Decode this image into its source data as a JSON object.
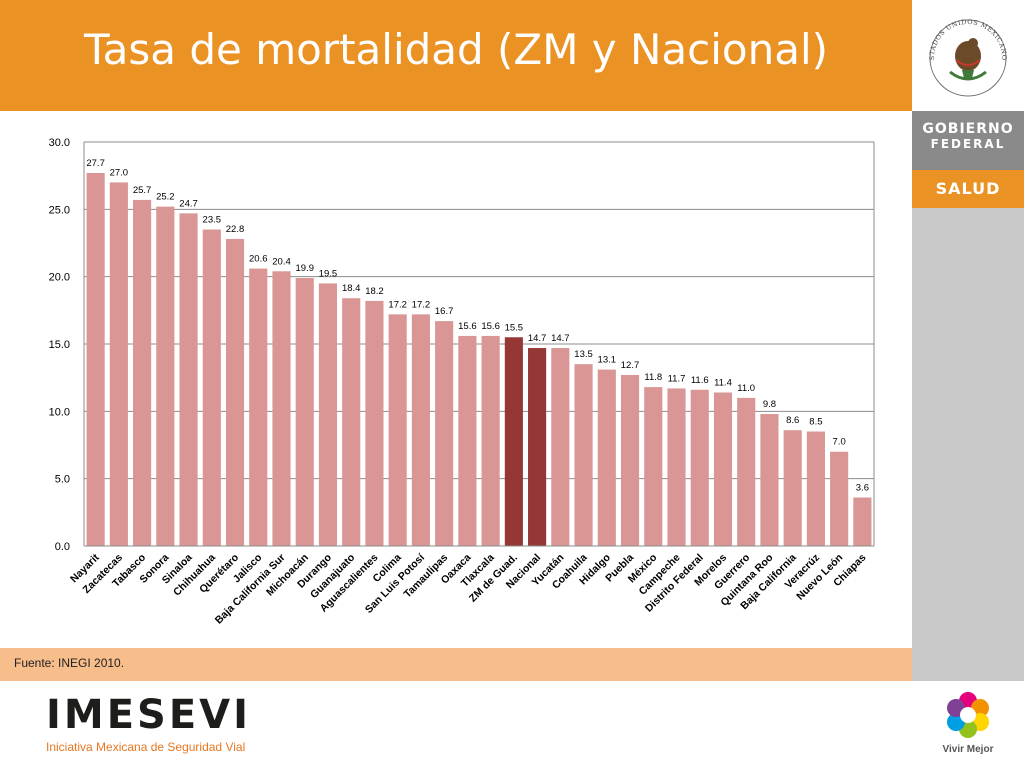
{
  "slide": {
    "title": "Tasa de mortalidad (ZM y Nacional)",
    "source": "Fuente: INEGI 2010."
  },
  "branding": {
    "gobierno_line1": "Gobierno",
    "gobierno_line2": "FEDERAL",
    "salud": "SALUD",
    "imesevi": "IMESEVI",
    "imesevi_tagline": "Iniciativa Mexicana de Seguridad Vial",
    "vivir_mejor": "Vivir Mejor",
    "seal_text": "ESTADOS UNIDOS MEXICANOS"
  },
  "colors": {
    "accent_orange": "#eb9225",
    "bar_default": "#d99694",
    "bar_highlight": "#953735",
    "source_band": "#f7bd8a"
  },
  "chart_data": {
    "type": "bar",
    "title": "",
    "xlabel": "",
    "ylabel": "",
    "ylim": [
      0,
      30
    ],
    "yticks": [
      "0.0",
      "5.0",
      "10.0",
      "15.0",
      "20.0",
      "25.0",
      "30.0"
    ],
    "grid": true,
    "categories": [
      "Nayarit",
      "Zacatecas",
      "Tabasco",
      "Sonora",
      "Sinaloa",
      "Chihuahua",
      "Querétaro",
      "Jalisco",
      "Baja California Sur",
      "Michoacán",
      "Durango",
      "Guanajuato",
      "Aguascalientes",
      "Colima",
      "San Luis Potosí",
      "Tamaulipas",
      "Oaxaca",
      "Tlaxcala",
      "ZM de Guad.",
      "Nacional",
      "Yucatán",
      "Coahuila",
      "Hidalgo",
      "Puebla",
      "México",
      "Campeche",
      "Distrito Federal",
      "Morelos",
      "Guerrero",
      "Quintana Roo",
      "Baja California",
      "Veracrúz",
      "Nuevo León",
      "Chiapas"
    ],
    "values": [
      27.7,
      27.0,
      25.7,
      25.2,
      24.7,
      23.5,
      22.8,
      20.6,
      20.4,
      19.9,
      19.5,
      18.4,
      18.2,
      17.2,
      17.2,
      16.7,
      15.6,
      15.6,
      15.5,
      14.7,
      14.7,
      13.5,
      13.1,
      12.7,
      11.8,
      11.7,
      11.6,
      11.4,
      11.0,
      9.8,
      8.6,
      8.5,
      7.0,
      3.6
    ],
    "value_labels": [
      "27.7",
      "27.0",
      "25.7",
      "25.2",
      "24.7",
      "23.5",
      "22.8",
      "20.6",
      "20.4",
      "19.9",
      "19.5",
      "18.4",
      "18.2",
      "17.2",
      "17.2",
      "16.7",
      "15.6",
      "15.6",
      "15.5",
      "14.7",
      "14.7",
      "13.5",
      "13.1",
      "12.7",
      "11.8",
      "11.7",
      "11.6",
      "11.4",
      "11.0",
      "9.8",
      "8.6",
      "8.5",
      "7.0",
      "3.6"
    ],
    "highlighted": [
      "ZM de Guad.",
      "Nacional"
    ]
  }
}
